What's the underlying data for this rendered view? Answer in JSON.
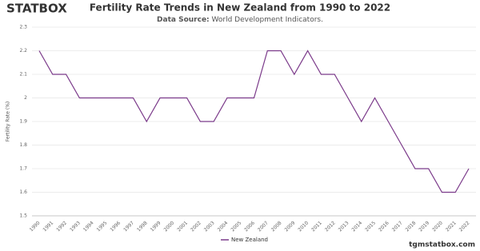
{
  "brand": "STATBOX",
  "footer": "tgmstatbox.com",
  "chart_data": {
    "type": "line",
    "title": "Fertility Rate Trends in New Zealand from 1990 to 2022",
    "source_label": "Data Source:",
    "source": "World Development Indicators.",
    "y_label": "Fertility Rate (%)",
    "categories": [
      "1990",
      "1991",
      "1992",
      "1993",
      "1994",
      "1995",
      "1996",
      "1997",
      "1998",
      "1999",
      "2000",
      "2001",
      "2002",
      "2003",
      "2004",
      "2005",
      "2006",
      "2007",
      "2008",
      "2009",
      "2010",
      "2011",
      "2012",
      "2013",
      "2014",
      "2015",
      "2016",
      "2017",
      "2018",
      "2019",
      "2020",
      "2021",
      "2022"
    ],
    "series": [
      {
        "name": "New Zealand",
        "color": "#7b3a8a",
        "values": [
          2.2,
          2.1,
          2.1,
          2.0,
          2.0,
          2.0,
          2.0,
          2.0,
          1.9,
          2.0,
          2.0,
          2.0,
          1.9,
          1.9,
          2.0,
          2.0,
          2.0,
          2.2,
          2.2,
          2.1,
          2.2,
          2.1,
          2.1,
          2.0,
          1.9,
          2.0,
          1.9,
          1.8,
          1.7,
          1.7,
          1.6,
          1.6,
          1.7
        ]
      }
    ],
    "ylim": [
      1.5,
      2.3
    ],
    "yticks": [
      1.5,
      1.6,
      1.7,
      1.8,
      1.9,
      2,
      2.1,
      2.2,
      2.3
    ],
    "grid": true
  }
}
